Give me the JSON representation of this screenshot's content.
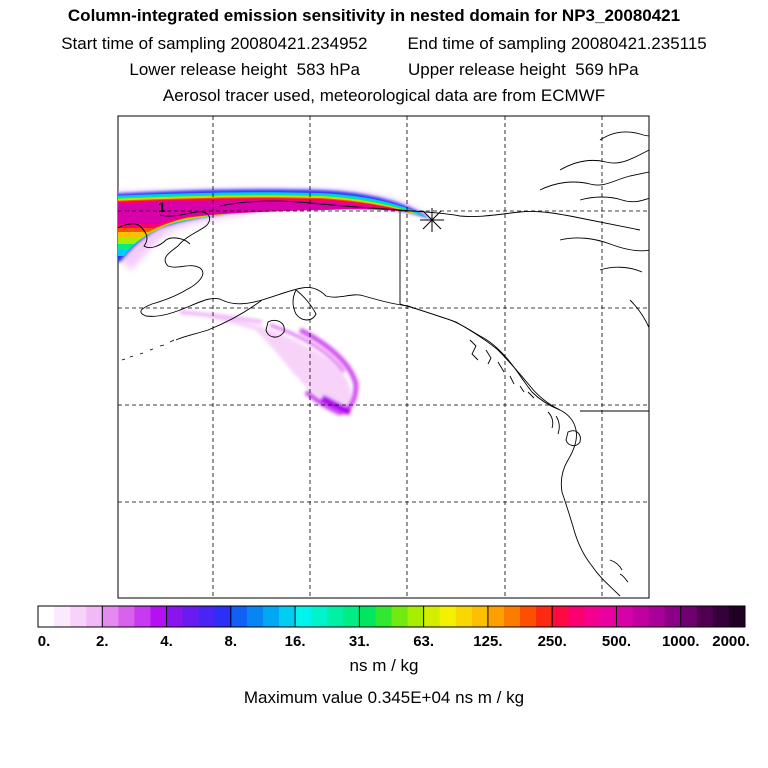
{
  "title": {
    "line1": "Column-integrated emission sensitivity in nested domain for NP3_20080421",
    "start_label": "Start time of sampling",
    "start_value": "20080421.234952",
    "end_label": "End time of sampling",
    "end_value": "20080421.235115",
    "lower_label": "Lower release height",
    "lower_value": "583 hPa",
    "upper_label": "Upper release height",
    "upper_value": "569 hPa",
    "line4": "Aerosol tracer used, meteorological data are from ECMWF"
  },
  "map": {
    "release_marker": "1",
    "release_symbol": "asterisk-icon"
  },
  "colorbar": {
    "labels": [
      "0.",
      "2.",
      "4.",
      "8.",
      "16.",
      "31.",
      "63.",
      "125.",
      "250.",
      "500.",
      "1000.",
      "2000."
    ],
    "colors": [
      "#ffffff",
      "#fde9fd",
      "#f9d2fb",
      "#f3b8f6",
      "#e48af0",
      "#d862ee",
      "#c83af0",
      "#b410f3",
      "#8a14ee",
      "#6a1cf0",
      "#4a24f2",
      "#2a30f6",
      "#1060f4",
      "#0884f4",
      "#00a8f4",
      "#00ccf4",
      "#00f4ee",
      "#00f4cc",
      "#00f0a8",
      "#00ec84",
      "#00e660",
      "#30e830",
      "#70ea10",
      "#a8ec00",
      "#d4ee00",
      "#f4f000",
      "#f8d800",
      "#fcc000",
      "#fca000",
      "#fc7c00",
      "#fc5000",
      "#fc2a10",
      "#fc0a40",
      "#fa0070",
      "#f40090",
      "#ea00a0",
      "#d800a8",
      "#c000a0",
      "#a80098",
      "#8c0088",
      "#700070",
      "#500050",
      "#36003a",
      "#200024"
    ],
    "units": "ns m / kg",
    "max_label": "Maximum value",
    "max_value": "0.345E+04",
    "max_units": "ns m / kg"
  }
}
